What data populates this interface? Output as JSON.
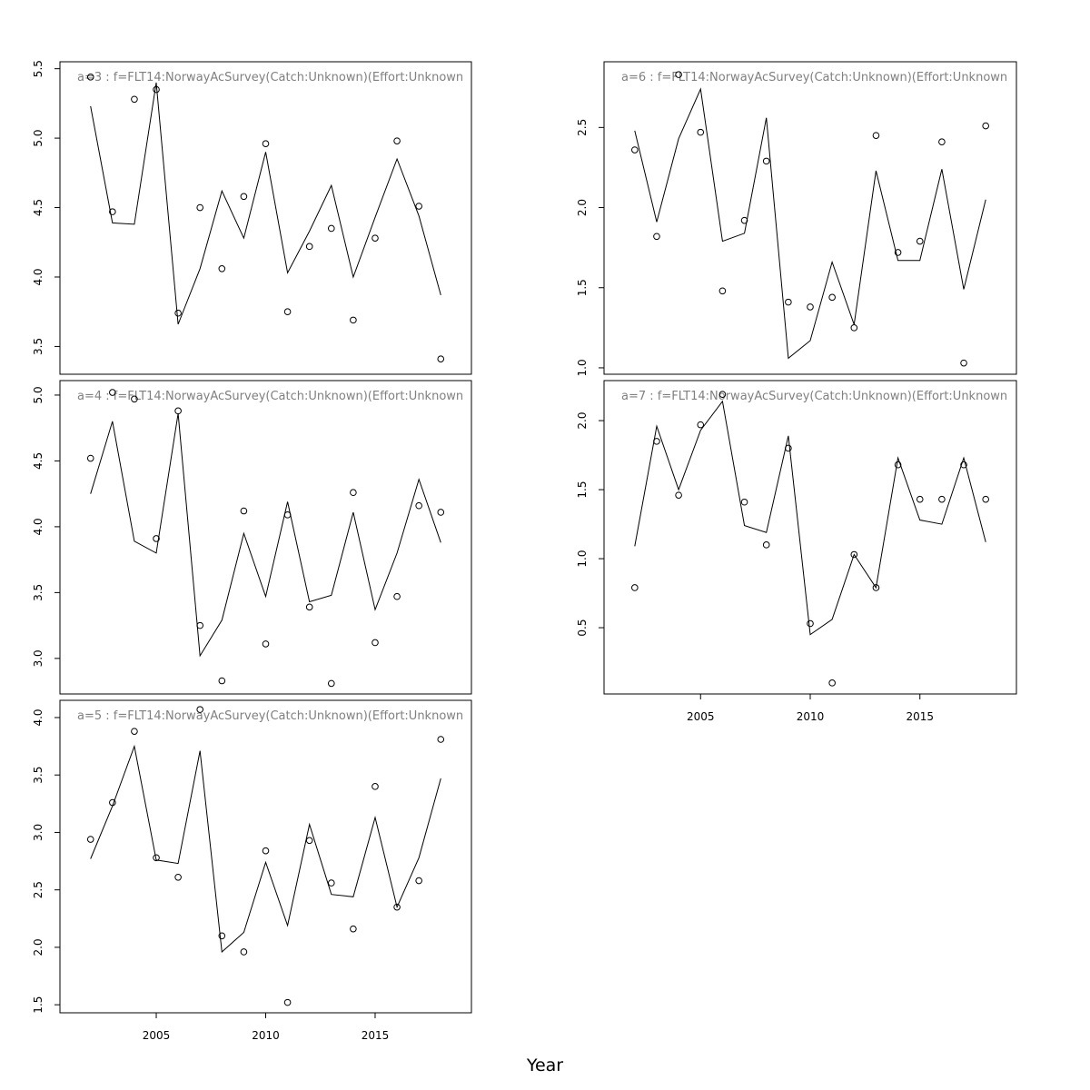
{
  "chart_data": {
    "type": "line",
    "xlabel": "Year",
    "panels": [
      {
        "title": "a=3  :  f=FLT14:NorwayAcSurvey(Catch:Unknown)(Effort:Unknown",
        "x": [
          2002,
          2003,
          2004,
          2005,
          2006,
          2007,
          2008,
          2009,
          2010,
          2011,
          2012,
          2013,
          2014,
          2015,
          2016,
          2017,
          2018
        ],
        "fitted": [
          5.23,
          4.39,
          4.38,
          5.4,
          3.66,
          4.06,
          4.62,
          4.28,
          4.9,
          4.03,
          4.33,
          4.66,
          4.0,
          4.43,
          4.85,
          4.44,
          3.87
        ],
        "observed": [
          5.44,
          4.47,
          5.28,
          5.35,
          3.74,
          4.5,
          4.06,
          4.58,
          4.96,
          3.75,
          4.22,
          4.35,
          3.69,
          4.28,
          4.98,
          4.51,
          3.41
        ],
        "ylim": [
          3.3,
          5.55
        ],
        "yticks": [
          3.5,
          4.0,
          4.5,
          5.0,
          5.5
        ],
        "ytick_labels": [
          "3.5",
          "4.0",
          "4.5",
          "5.0",
          "5.5"
        ]
      },
      {
        "title": "a=4  :  f=FLT14:NorwayAcSurvey(Catch:Unknown)(Effort:Unknown",
        "x": [
          2002,
          2003,
          2004,
          2005,
          2006,
          2007,
          2008,
          2009,
          2010,
          2011,
          2012,
          2013,
          2014,
          2015,
          2016,
          2017,
          2018
        ],
        "fitted": [
          4.25,
          4.8,
          3.89,
          3.8,
          4.86,
          3.02,
          3.29,
          3.95,
          3.47,
          4.19,
          3.43,
          3.48,
          4.11,
          3.37,
          3.8,
          4.36,
          3.88
        ],
        "observed": [
          4.52,
          5.02,
          4.97,
          3.91,
          4.88,
          3.25,
          2.83,
          4.12,
          3.11,
          4.09,
          3.39,
          2.81,
          4.26,
          3.12,
          3.47,
          4.16,
          4.11
        ],
        "ylim": [
          2.73,
          5.11
        ],
        "yticks": [
          3.0,
          3.5,
          4.0,
          4.5,
          5.0
        ],
        "ytick_labels": [
          "3.0",
          "3.5",
          "4.0",
          "4.5",
          "5.0"
        ]
      },
      {
        "title": "a=5  :  f=FLT14:NorwayAcSurvey(Catch:Unknown)(Effort:Unknown",
        "x": [
          2002,
          2003,
          2004,
          2005,
          2006,
          2007,
          2008,
          2009,
          2010,
          2011,
          2012,
          2013,
          2014,
          2015,
          2016,
          2017,
          2018
        ],
        "fitted": [
          2.77,
          3.23,
          3.75,
          2.76,
          2.73,
          3.71,
          1.96,
          2.13,
          2.74,
          2.19,
          3.07,
          2.46,
          2.44,
          3.13,
          2.35,
          2.78,
          3.47
        ],
        "observed": [
          2.94,
          3.26,
          3.88,
          2.78,
          2.61,
          4.07,
          2.1,
          1.96,
          2.84,
          1.52,
          2.93,
          2.56,
          2.16,
          3.4,
          2.35,
          2.58,
          3.81
        ],
        "ylim": [
          1.43,
          4.15
        ],
        "yticks": [
          1.5,
          2.0,
          2.5,
          3.0,
          3.5,
          4.0
        ],
        "ytick_labels": [
          "1.5",
          "2.0",
          "2.5",
          "3.0",
          "3.5",
          "4.0"
        ]
      },
      {
        "title": "a=6  :  f=FLT14:NorwayAcSurvey(Catch:Unknown)(Effort:Unknown",
        "x": [
          2002,
          2003,
          2004,
          2005,
          2006,
          2007,
          2008,
          2009,
          2010,
          2011,
          2012,
          2013,
          2014,
          2015,
          2016,
          2017,
          2018
        ],
        "fitted": [
          2.48,
          1.91,
          2.43,
          2.74,
          1.79,
          1.84,
          2.56,
          1.06,
          1.17,
          1.66,
          1.27,
          2.23,
          1.67,
          1.67,
          2.24,
          1.49,
          2.05
        ],
        "observed": [
          2.36,
          1.82,
          2.83,
          2.47,
          1.48,
          1.92,
          2.29,
          1.41,
          1.38,
          1.44,
          1.25,
          2.45,
          1.72,
          1.79,
          2.41,
          1.03,
          2.51
        ],
        "ylim": [
          0.96,
          2.91
        ],
        "yticks": [
          1.0,
          1.5,
          2.0,
          2.5
        ],
        "ytick_labels": [
          "1.0",
          "1.5",
          "2.0",
          "2.5"
        ]
      },
      {
        "title": "a=7  :  f=FLT14:NorwayAcSurvey(Catch:Unknown)(Effort:Unknown",
        "x": [
          2002,
          2003,
          2004,
          2005,
          2006,
          2007,
          2008,
          2009,
          2010,
          2011,
          2012,
          2013,
          2014,
          2015,
          2016,
          2017,
          2018
        ],
        "fitted": [
          1.09,
          1.96,
          1.5,
          1.93,
          2.14,
          1.24,
          1.19,
          1.89,
          0.45,
          0.56,
          1.03,
          0.79,
          1.73,
          1.28,
          1.25,
          1.73,
          1.12
        ],
        "observed": [
          0.79,
          1.85,
          1.46,
          1.97,
          2.19,
          1.41,
          1.1,
          1.8,
          0.53,
          0.1,
          1.03,
          0.79,
          1.68,
          1.43,
          1.43,
          1.68,
          1.43
        ],
        "ylim": [
          0.02,
          2.29
        ],
        "yticks": [
          0.5,
          1.0,
          1.5,
          2.0
        ],
        "ytick_labels": [
          "0.5",
          "1.0",
          "1.5",
          "2.0"
        ]
      }
    ],
    "xlim": [
      2000.6,
      2019.4
    ],
    "xticks": [
      2005,
      2010,
      2015
    ],
    "xtick_labels": [
      "2005",
      "2010",
      "2015"
    ],
    "grid": false,
    "legend": "none"
  }
}
